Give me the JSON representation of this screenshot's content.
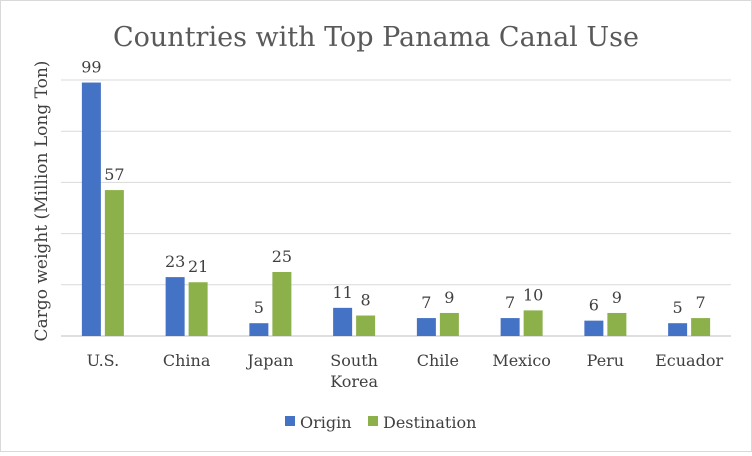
{
  "chart_data": {
    "type": "bar",
    "title": "Countries with Top Panama Canal Use",
    "xlabel": "",
    "ylabel": "Cargo weight (Million Long Ton)",
    "categories": [
      "U.S.",
      "China",
      "Japan",
      "South Korea",
      "Chile",
      "Mexico",
      "Peru",
      "Ecuador"
    ],
    "category_lines": [
      [
        "U.S."
      ],
      [
        "China"
      ],
      [
        "Japan"
      ],
      [
        "South",
        "Korea"
      ],
      [
        "Chile"
      ],
      [
        "Mexico"
      ],
      [
        "Peru"
      ],
      [
        "Ecuador"
      ]
    ],
    "series": [
      {
        "name": "Origin",
        "color": "#4472c4",
        "values": [
          99,
          23,
          5,
          11,
          7,
          7,
          6,
          5
        ]
      },
      {
        "name": "Destination",
        "color": "#8db14a",
        "values": [
          57,
          21,
          25,
          8,
          9,
          10,
          9,
          7
        ]
      }
    ],
    "ylim": [
      0,
      100
    ],
    "grid": true,
    "legend": "bottom",
    "data_labels": true
  }
}
